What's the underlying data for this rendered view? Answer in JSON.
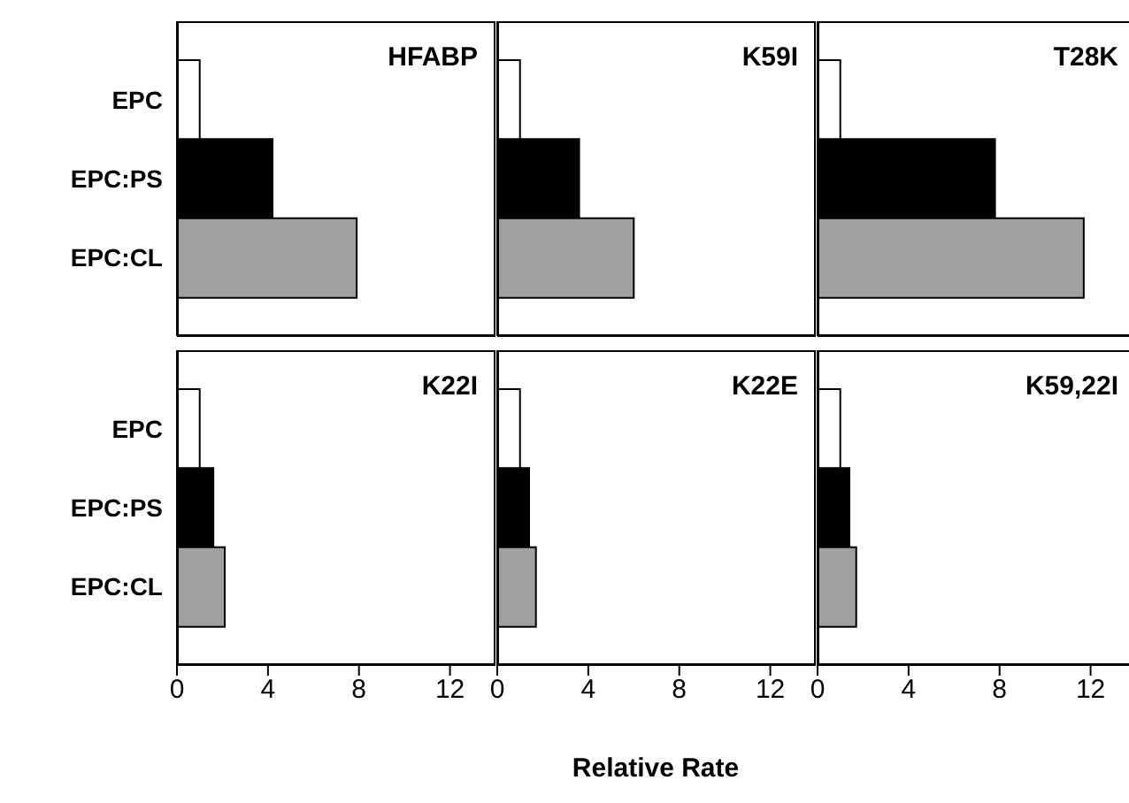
{
  "chart_data": [
    {
      "type": "bar",
      "orientation": "horizontal",
      "title": "HFABP",
      "categories": [
        "EPC",
        "EPC:PS",
        "EPC:CL"
      ],
      "values": [
        1,
        4.2,
        7.9
      ],
      "colors": [
        "#ffffff",
        "#000000",
        "#a0a0a0"
      ],
      "xlim": [
        0,
        14
      ],
      "xticks": [
        0,
        4,
        8,
        12
      ],
      "tick_labels": "y"
    },
    {
      "type": "bar",
      "orientation": "horizontal",
      "title": "K59I",
      "categories": [
        null,
        null,
        null
      ],
      "values": [
        1,
        3.6,
        6.0
      ],
      "colors": [
        "#ffffff",
        "#000000",
        "#a0a0a0"
      ],
      "xlim": [
        0,
        14
      ],
      "xticks": [
        0,
        4,
        8,
        12
      ],
      "tick_labels": false
    },
    {
      "type": "bar",
      "orientation": "horizontal",
      "title": "T28K",
      "categories": [
        null,
        null,
        null
      ],
      "values": [
        1,
        7.8,
        11.7
      ],
      "colors": [
        "#ffffff",
        "#000000",
        "#a0a0a0"
      ],
      "xlim": [
        0,
        14
      ],
      "xticks": [
        0,
        4,
        8,
        12
      ],
      "tick_labels": false
    },
    {
      "type": "bar",
      "orientation": "horizontal",
      "title": "K22I",
      "categories": [
        "EPC",
        "EPC:PS",
        "EPC:CL"
      ],
      "values": [
        1,
        1.6,
        2.1
      ],
      "colors": [
        "#ffffff",
        "#000000",
        "#a0a0a0"
      ],
      "xlim": [
        0,
        14
      ],
      "xticks": [
        0,
        4,
        8,
        12
      ]
    },
    {
      "type": "bar",
      "orientation": "horizontal",
      "title": "K22E",
      "xlabel": "Relative Rate",
      "categories": [
        null,
        null,
        null
      ],
      "values": [
        1,
        1.4,
        1.7
      ],
      "colors": [
        "#ffffff",
        "#000000",
        "#a0a0a0"
      ],
      "xlim": [
        0,
        14
      ],
      "xticks": [
        0,
        4,
        8,
        12
      ],
      "tick_labels": "x"
    },
    {
      "type": "bar",
      "orientation": "horizontal",
      "title": "K59,22I",
      "categories": [
        null,
        null,
        null
      ],
      "values": [
        1,
        1.4,
        1.7
      ],
      "colors": [
        "#ffffff",
        "#000000",
        "#a0a0a0"
      ],
      "xlim": [
        0,
        14
      ],
      "xticks": [
        0,
        4,
        8,
        12
      ],
      "tick_labels": "x"
    }
  ]
}
